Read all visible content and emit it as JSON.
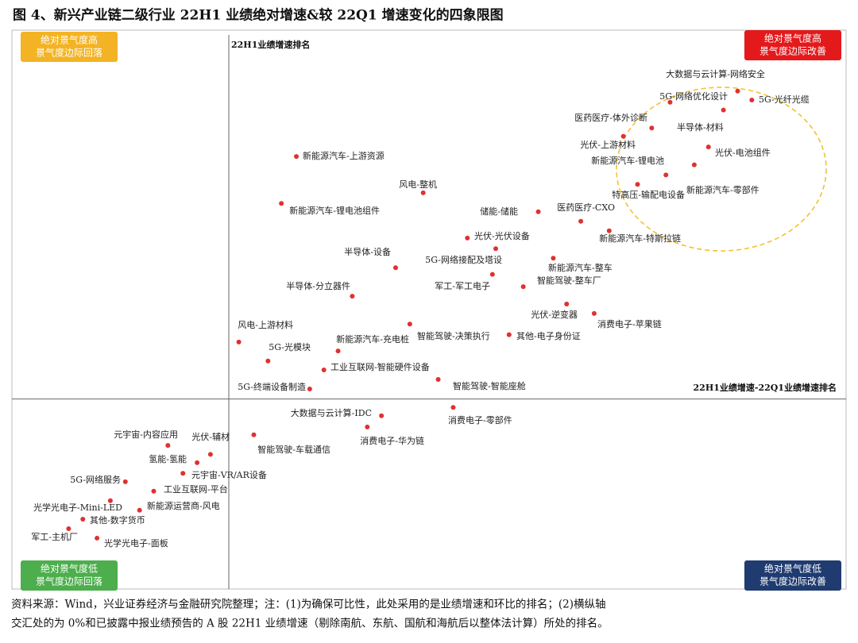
{
  "chart_data": {
    "type": "scatter",
    "title": "图 4、新兴产业链二级行业 22H1 业绩绝对增速&较 22Q1 增速变化的四象限图",
    "y_label": "22H1业绩增速排名",
    "x_label": "22H1业绩增速-22Q1业绩增速排名",
    "xlim": [
      -26,
      74
    ],
    "ylim": [
      -34,
      66
    ],
    "color": "#e0312f",
    "labels": [
      "大数据与云计算-网络安全",
      "5G-光纤光缆",
      "5G-网络优化设计",
      "医药医疗-体外诊断",
      "半导体-材料",
      "光伏-上游材料",
      "光伏-电池组件",
      "新能源汽车-锂电池",
      "新能源汽车-零部件",
      "特高压-输配电设备",
      "新能源汽车-上游资源",
      "风电-整机",
      "新能源汽车-锂电池组件",
      "储能-储能",
      "医药医疗-CXO",
      "新能源汽车-特斯拉链",
      "光伏-光伏设备",
      "5G-网络接配及塔设",
      "半导体-设备",
      "新能源汽车-整车",
      "智能驾驶-整车厂",
      "军工-军工电子",
      "半导体-分立器件",
      "光伏-逆变器",
      "消费电子-苹果链",
      "风电-上游材料",
      "智能驾驶-决策执行",
      "其他-电子身份证",
      "5G-光模块",
      "新能源汽车-充电桩",
      "工业互联网-智能硬件设备",
      "智能驾驶-智能座舱",
      "5G-终端设备制造",
      "大数据与云计算-IDC",
      "消费电子-零部件",
      "消费电子-华为链",
      "智能驾驶-车载通信",
      "元宇宙-内容应用",
      "光伏-辅材",
      "氢能-氢能",
      "元宇宙-VR/AR设备",
      "5G-网络服务",
      "工业互联网-平台",
      "光学光电子-Mini-LED",
      "新能源运营商-风电",
      "其他-数字货币",
      "军工-主机厂",
      "光学光电子-面板"
    ],
    "x": [
      61.0,
      62.7,
      52.9,
      50.7,
      59.3,
      47.3,
      57.5,
      52.4,
      55.8,
      49.0,
      8.1,
      23.3,
      6.3,
      37.1,
      42.2,
      45.6,
      28.6,
      32.0,
      20.0,
      38.9,
      35.3,
      31.6,
      14.8,
      40.5,
      43.8,
      1.2,
      21.7,
      33.6,
      4.7,
      13.1,
      11.4,
      25.1,
      9.7,
      18.3,
      26.9,
      16.6,
      3.0,
      -7.3,
      -2.2,
      -3.8,
      -5.5,
      -12.4,
      -9.0,
      -14.2,
      -10.7,
      -17.5,
      -19.2,
      -15.8
    ],
    "y": [
      55.1,
      53.5,
      53.1,
      48.5,
      51.7,
      47.0,
      45.1,
      40.1,
      41.9,
      38.4,
      43.4,
      36.9,
      35.0,
      33.5,
      31.8,
      30.1,
      28.8,
      26.9,
      23.5,
      25.2,
      20.1,
      22.3,
      18.4,
      17.0,
      15.3,
      10.2,
      13.4,
      11.5,
      6.8,
      8.6,
      5.2,
      3.5,
      1.8,
      -3.0,
      -1.5,
      -5.0,
      -6.4,
      -8.3,
      -9.9,
      -11.4,
      -13.3,
      -14.8,
      -16.5,
      -18.2,
      -19.9,
      -21.5,
      -23.2,
      -24.9
    ],
    "quadrants": [
      {
        "lines": [
          "绝对景气度高",
          "景气度边际回落"
        ],
        "color": "#f3b324"
      },
      {
        "lines": [
          "绝对景气度高",
          "景气度边际改善"
        ],
        "color": "#e3191c"
      },
      {
        "lines": [
          "绝对景气度低",
          "景气度边际回落"
        ],
        "color": "#4cae4c"
      },
      {
        "lines": [
          "绝对景气度低",
          "景气度边际改善"
        ],
        "color": "#1f3b70"
      }
    ],
    "source": [
      "资料来源：Wind，兴业证券经济与金融研究院整理；注：(1)为确保可比性，此处采用的是业绩增速和环比的排名；(2)横纵轴",
      "交汇处的为 0%和已披露中报业绩预告的 A 股 22H1 业绩增速（剔除南航、东航、国航和海航后以整体法计算）所处的排名。"
    ]
  }
}
